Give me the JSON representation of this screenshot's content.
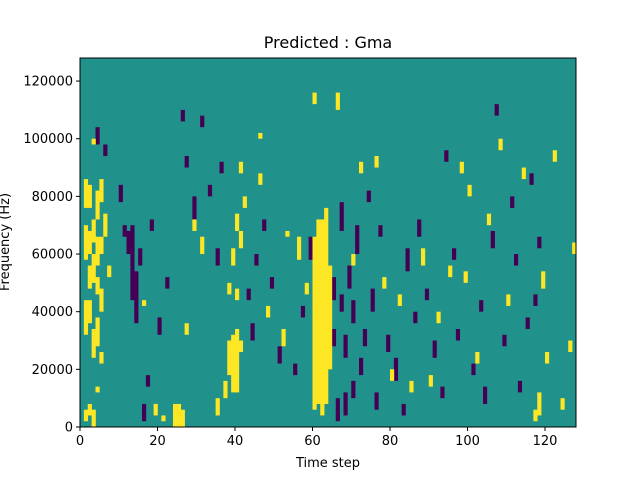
{
  "chart_data": {
    "type": "heatmap",
    "title": "Predicted : Gma",
    "xlabel": "Time step",
    "ylabel": "Frequency (Hz)",
    "xlim": [
      0,
      128
    ],
    "ylim": [
      0,
      128000
    ],
    "grid": false,
    "xticks": [
      0,
      20,
      40,
      60,
      80,
      100,
      120
    ],
    "yticks": [
      0,
      20000,
      40000,
      60000,
      80000,
      100000,
      120000
    ],
    "n_time_steps": 128,
    "n_freq_bins": 64,
    "bin_hz": 2000,
    "colors": {
      "low": "#440154",
      "mid": "#21918c",
      "high": "#fde725"
    },
    "high_cells": [
      [
        1,
        1,
        3
      ],
      [
        1,
        16,
        22
      ],
      [
        1,
        29,
        35
      ],
      [
        1,
        38,
        43
      ],
      [
        2,
        2,
        4
      ],
      [
        2,
        18,
        22
      ],
      [
        2,
        24,
        28
      ],
      [
        2,
        30,
        34
      ],
      [
        2,
        38,
        42
      ],
      [
        3,
        0,
        3
      ],
      [
        3,
        12,
        17
      ],
      [
        3,
        25,
        30
      ],
      [
        3,
        32,
        36
      ],
      [
        3,
        49,
        50
      ],
      [
        4,
        6,
        7
      ],
      [
        4,
        14,
        19
      ],
      [
        4,
        23,
        26
      ],
      [
        4,
        28,
        33
      ],
      [
        4,
        36,
        41
      ],
      [
        5,
        11,
        13
      ],
      [
        5,
        20,
        24
      ],
      [
        5,
        30,
        33
      ],
      [
        5,
        39,
        43
      ],
      [
        6,
        33,
        37
      ],
      [
        7,
        26,
        28
      ],
      [
        16,
        21,
        22
      ],
      [
        19,
        2,
        4
      ],
      [
        21,
        1,
        2
      ],
      [
        24,
        0,
        4
      ],
      [
        25,
        0,
        4
      ],
      [
        26,
        0,
        3
      ],
      [
        27,
        16,
        18
      ],
      [
        29,
        34,
        36
      ],
      [
        31,
        30,
        33
      ],
      [
        35,
        2,
        5
      ],
      [
        37,
        5,
        8
      ],
      [
        38,
        9,
        15
      ],
      [
        38,
        23,
        25
      ],
      [
        39,
        6,
        16
      ],
      [
        39,
        28,
        31
      ],
      [
        40,
        6,
        17
      ],
      [
        40,
        22,
        24
      ],
      [
        40,
        34,
        37
      ],
      [
        41,
        13,
        15
      ],
      [
        41,
        31,
        34
      ],
      [
        41,
        44,
        46
      ],
      [
        42,
        38,
        40
      ],
      [
        46,
        42,
        44
      ],
      [
        46,
        50,
        51
      ],
      [
        48,
        19,
        21
      ],
      [
        52,
        14,
        17
      ],
      [
        53,
        33,
        34
      ],
      [
        56,
        29,
        33
      ],
      [
        58,
        23,
        25
      ],
      [
        60,
        3,
        33
      ],
      [
        60,
        56,
        58
      ],
      [
        61,
        4,
        36
      ],
      [
        62,
        2,
        36
      ],
      [
        63,
        4,
        38
      ],
      [
        64,
        10,
        28
      ],
      [
        66,
        55,
        58
      ],
      [
        70,
        28,
        30
      ],
      [
        72,
        44,
        46
      ],
      [
        76,
        45,
        47
      ],
      [
        78,
        24,
        26
      ],
      [
        80,
        8,
        10
      ],
      [
        82,
        21,
        23
      ],
      [
        85,
        6,
        8
      ],
      [
        88,
        28,
        31
      ],
      [
        90,
        7,
        9
      ],
      [
        92,
        18,
        20
      ],
      [
        95,
        26,
        28
      ],
      [
        98,
        44,
        46
      ],
      [
        99,
        25,
        27
      ],
      [
        100,
        40,
        42
      ],
      [
        102,
        11,
        13
      ],
      [
        105,
        35,
        37
      ],
      [
        108,
        48,
        50
      ],
      [
        110,
        21,
        23
      ],
      [
        114,
        43,
        45
      ],
      [
        117,
        1,
        3
      ],
      [
        118,
        2,
        6
      ],
      [
        119,
        24,
        27
      ],
      [
        120,
        11,
        13
      ],
      [
        122,
        46,
        48
      ],
      [
        124,
        3,
        5
      ],
      [
        126,
        13,
        15
      ],
      [
        127,
        30,
        32
      ]
    ],
    "low_cells": [
      [
        4,
        49,
        52
      ],
      [
        6,
        47,
        49
      ],
      [
        10,
        39,
        42
      ],
      [
        11,
        33,
        35
      ],
      [
        12,
        30,
        34
      ],
      [
        13,
        22,
        35
      ],
      [
        14,
        18,
        27
      ],
      [
        15,
        28,
        31
      ],
      [
        16,
        1,
        4
      ],
      [
        17,
        7,
        9
      ],
      [
        18,
        34,
        36
      ],
      [
        20,
        16,
        19
      ],
      [
        22,
        24,
        26
      ],
      [
        26,
        53,
        55
      ],
      [
        27,
        45,
        47
      ],
      [
        29,
        36,
        40
      ],
      [
        31,
        52,
        54
      ],
      [
        33,
        40,
        42
      ],
      [
        35,
        28,
        31
      ],
      [
        36,
        44,
        46
      ],
      [
        43,
        22,
        24
      ],
      [
        44,
        15,
        18
      ],
      [
        45,
        28,
        30
      ],
      [
        47,
        34,
        36
      ],
      [
        49,
        24,
        26
      ],
      [
        51,
        11,
        14
      ],
      [
        55,
        9,
        11
      ],
      [
        57,
        19,
        21
      ],
      [
        59,
        29,
        33
      ],
      [
        65,
        14,
        17
      ],
      [
        65,
        22,
        26
      ],
      [
        66,
        1,
        5
      ],
      [
        67,
        20,
        23
      ],
      [
        67,
        34,
        39
      ],
      [
        68,
        2,
        6
      ],
      [
        68,
        12,
        16
      ],
      [
        69,
        24,
        28
      ],
      [
        70,
        5,
        8
      ],
      [
        70,
        18,
        22
      ],
      [
        71,
        30,
        35
      ],
      [
        72,
        9,
        12
      ],
      [
        73,
        14,
        17
      ],
      [
        74,
        39,
        41
      ],
      [
        75,
        20,
        24
      ],
      [
        76,
        3,
        6
      ],
      [
        77,
        33,
        35
      ],
      [
        79,
        13,
        16
      ],
      [
        81,
        8,
        12
      ],
      [
        83,
        2,
        4
      ],
      [
        84,
        27,
        31
      ],
      [
        86,
        18,
        20
      ],
      [
        87,
        33,
        36
      ],
      [
        89,
        22,
        24
      ],
      [
        91,
        12,
        15
      ],
      [
        93,
        5,
        7
      ],
      [
        94,
        46,
        48
      ],
      [
        96,
        29,
        31
      ],
      [
        97,
        15,
        17
      ],
      [
        101,
        9,
        11
      ],
      [
        103,
        20,
        22
      ],
      [
        104,
        4,
        7
      ],
      [
        106,
        31,
        34
      ],
      [
        107,
        54,
        56
      ],
      [
        109,
        14,
        16
      ],
      [
        111,
        38,
        40
      ],
      [
        112,
        28,
        30
      ],
      [
        113,
        6,
        8
      ],
      [
        115,
        17,
        19
      ],
      [
        116,
        42,
        44
      ],
      [
        117,
        21,
        23
      ],
      [
        118,
        31,
        33
      ]
    ]
  }
}
